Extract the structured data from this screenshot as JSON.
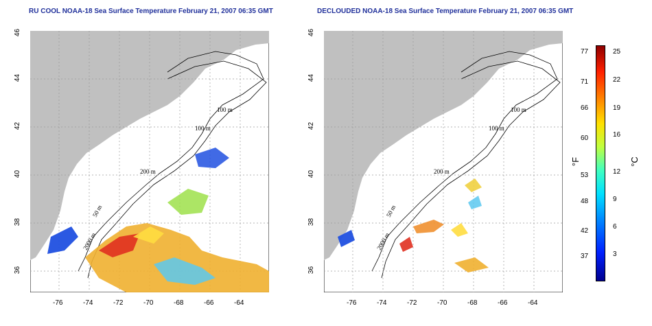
{
  "left_panel": {
    "title": "RU COOL NOAA-18 Sea Surface Temperature February 21, 2007 06:35 GMT"
  },
  "right_panel": {
    "title": "DECLOUDED NOAA-18 Sea Surface Temperature February 21, 2007 06:35 GMT"
  },
  "axes": {
    "x_ticks": [
      "-76",
      "-74",
      "-72",
      "-70",
      "-68",
      "-66",
      "-64"
    ],
    "y_ticks": [
      "36",
      "38",
      "40",
      "42",
      "44",
      "46"
    ]
  },
  "isobath_labels": [
    "100 m",
    "100 m",
    "200 m",
    "50 m",
    "2000 m"
  ],
  "colorbar": {
    "fahrenheit_ticks": [
      "77",
      "71",
      "66",
      "60",
      "53",
      "48",
      "42",
      "37"
    ],
    "celsius_ticks": [
      "25",
      "22",
      "19",
      "16",
      "12",
      "9",
      "6",
      "3"
    ],
    "fahrenheit_unit": "°F",
    "celsius_unit": "°C"
  },
  "colors": {
    "land": "#c0c0c0",
    "title": "#1f2f9a",
    "grid": "#9a9a9a"
  }
}
